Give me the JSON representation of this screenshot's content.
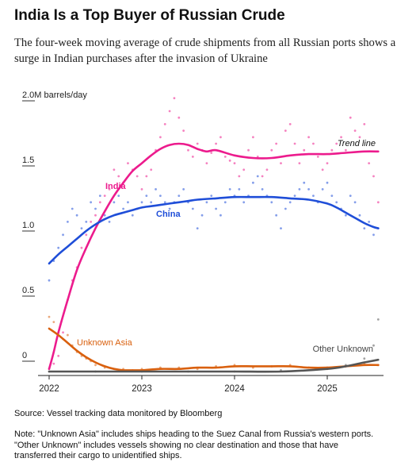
{
  "header": {
    "title": "India Is a Top Buyer of Russian Crude",
    "subtitle": "The four-week moving average of crude shipments from all Russian ports shows a surge in Indian purchases after the invasion of Ukraine"
  },
  "footer": {
    "source": "Source: Vessel tracking data monitored by Bloomberg",
    "note_lines": [
      "Note: \"Unknown Asia\" includes ships heading to the Suez Canal from Russia's western ports.",
      "\"Other Unknown\" includes vessels showing no clear destination and those that have",
      "transferred their cargo to unidentified ships."
    ]
  },
  "chart_data": {
    "type": "scatter",
    "title": "India Is a Top Buyer of Russian Crude",
    "unit": "barrels/day",
    "y_ticks": [
      {
        "value": 0,
        "label": "0"
      },
      {
        "value": 0.5,
        "label": "0.5"
      },
      {
        "value": 1.0,
        "label": "1.0"
      },
      {
        "value": 1.5,
        "label": "1.5"
      },
      {
        "value": 2.0,
        "label": "2.0M barrels/day"
      }
    ],
    "x_ticks": [
      {
        "value": 2022,
        "label": "2022"
      },
      {
        "value": 2023,
        "label": "2023"
      },
      {
        "value": 2024,
        "label": "2024"
      },
      {
        "value": 2025,
        "label": "2025"
      }
    ],
    "xlim": [
      2021.9,
      2025.6
    ],
    "ylim": [
      0,
      2.05
    ],
    "grid": false,
    "trend_line_label": "Trend line",
    "series": [
      {
        "name": "India",
        "color": "#ec1b8d",
        "label_x": 2021.2,
        "trend_x": [
          2022.0,
          2022.05,
          2022.1,
          2022.2,
          2022.3,
          2022.4,
          2022.5,
          2022.6,
          2022.7,
          2022.8,
          2022.9,
          2023.0,
          2023.1,
          2023.2,
          2023.3,
          2023.4,
          2023.5,
          2023.6,
          2023.7,
          2023.8,
          2024.0,
          2024.2,
          2024.4,
          2024.6,
          2024.8,
          2025.0,
          2025.2,
          2025.4,
          2025.55
        ],
        "trend_y": [
          0.02,
          0.15,
          0.3,
          0.55,
          0.78,
          0.95,
          1.1,
          1.23,
          1.35,
          1.45,
          1.54,
          1.6,
          1.66,
          1.71,
          1.74,
          1.75,
          1.74,
          1.71,
          1.69,
          1.7,
          1.66,
          1.64,
          1.64,
          1.66,
          1.67,
          1.67,
          1.68,
          1.69,
          1.69
        ],
        "points_x": [
          2022.0,
          2022.05,
          2022.1,
          2022.15,
          2022.2,
          2022.25,
          2022.3,
          2022.35,
          2022.4,
          2022.45,
          2022.5,
          2022.55,
          2022.6,
          2022.65,
          2022.7,
          2022.75,
          2022.8,
          2022.85,
          2022.9,
          2022.95,
          2023.0,
          2023.05,
          2023.1,
          2023.15,
          2023.2,
          2023.25,
          2023.3,
          2023.35,
          2023.4,
          2023.45,
          2023.5,
          2023.55,
          2023.6,
          2023.65,
          2023.7,
          2023.75,
          2023.8,
          2023.85,
          2023.9,
          2023.95,
          2024.0,
          2024.05,
          2024.1,
          2024.15,
          2024.2,
          2024.25,
          2024.3,
          2024.35,
          2024.4,
          2024.45,
          2024.5,
          2024.55,
          2024.6,
          2024.65,
          2024.7,
          2024.75,
          2024.8,
          2024.85,
          2024.9,
          2024.95,
          2025.0,
          2025.05,
          2025.1,
          2025.15,
          2025.2,
          2025.25,
          2025.3,
          2025.35,
          2025.4,
          2025.45,
          2025.5,
          2025.55
        ],
        "points_y": [
          0.02,
          0.06,
          0.12,
          0.3,
          0.55,
          0.7,
          0.8,
          0.95,
          1.05,
          1.15,
          1.2,
          1.3,
          1.35,
          1.4,
          1.55,
          1.5,
          1.45,
          1.6,
          1.55,
          1.5,
          1.4,
          1.5,
          1.55,
          1.7,
          1.8,
          1.9,
          2.0,
          2.1,
          1.95,
          1.85,
          1.7,
          1.65,
          1.75,
          1.7,
          1.6,
          1.68,
          1.75,
          1.8,
          1.65,
          1.62,
          1.6,
          1.5,
          1.55,
          1.7,
          1.8,
          1.65,
          1.5,
          1.55,
          1.7,
          1.75,
          1.6,
          1.85,
          1.9,
          1.75,
          1.6,
          1.7,
          1.8,
          1.75,
          1.65,
          1.55,
          1.6,
          1.7,
          1.75,
          1.8,
          1.7,
          1.95,
          1.85,
          1.8,
          1.9,
          1.6,
          1.5,
          1.3
        ]
      },
      {
        "name": "China",
        "color": "#1f4ed8",
        "label_x": 2023.2,
        "trend_x": [
          2022.0,
          2022.1,
          2022.2,
          2022.3,
          2022.4,
          2022.5,
          2022.6,
          2022.7,
          2022.8,
          2022.9,
          2023.0,
          2023.1,
          2023.2,
          2023.3,
          2023.4,
          2023.5,
          2023.6,
          2023.8,
          2024.0,
          2024.2,
          2024.4,
          2024.6,
          2024.8,
          2025.0,
          2025.1,
          2025.2,
          2025.3,
          2025.4,
          2025.5,
          2025.55
        ],
        "trend_y": [
          0.83,
          0.9,
          0.96,
          1.02,
          1.08,
          1.13,
          1.17,
          1.2,
          1.22,
          1.24,
          1.26,
          1.27,
          1.28,
          1.29,
          1.3,
          1.31,
          1.32,
          1.33,
          1.34,
          1.34,
          1.34,
          1.33,
          1.32,
          1.29,
          1.26,
          1.22,
          1.18,
          1.14,
          1.11,
          1.1
        ],
        "points_x": [
          2022.0,
          2022.05,
          2022.1,
          2022.15,
          2022.2,
          2022.25,
          2022.3,
          2022.35,
          2022.4,
          2022.45,
          2022.5,
          2022.55,
          2022.6,
          2022.65,
          2022.7,
          2022.75,
          2022.8,
          2022.85,
          2022.9,
          2022.95,
          2023.0,
          2023.05,
          2023.1,
          2023.15,
          2023.2,
          2023.25,
          2023.3,
          2023.35,
          2023.4,
          2023.45,
          2023.5,
          2023.55,
          2023.6,
          2023.65,
          2023.7,
          2023.75,
          2023.8,
          2023.85,
          2023.9,
          2023.95,
          2024.0,
          2024.05,
          2024.1,
          2024.15,
          2024.2,
          2024.25,
          2024.3,
          2024.35,
          2024.4,
          2024.45,
          2024.5,
          2024.55,
          2024.6,
          2024.65,
          2024.7,
          2024.75,
          2024.8,
          2024.85,
          2024.9,
          2024.95,
          2025.0,
          2025.05,
          2025.1,
          2025.15,
          2025.2,
          2025.25,
          2025.3,
          2025.35,
          2025.4,
          2025.45,
          2025.5,
          2025.55
        ],
        "points_y": [
          0.7,
          0.85,
          0.95,
          1.05,
          1.15,
          1.25,
          1.2,
          1.1,
          1.15,
          1.3,
          1.25,
          1.35,
          1.2,
          1.15,
          1.3,
          1.35,
          1.25,
          1.3,
          1.2,
          1.25,
          1.3,
          1.35,
          1.3,
          1.4,
          1.35,
          1.3,
          1.25,
          1.3,
          1.35,
          1.4,
          1.3,
          1.25,
          1.1,
          1.2,
          1.3,
          1.35,
          1.25,
          1.2,
          1.3,
          1.4,
          1.35,
          1.4,
          1.3,
          1.35,
          1.45,
          1.5,
          1.4,
          1.35,
          1.3,
          1.2,
          1.1,
          1.25,
          1.3,
          1.35,
          1.4,
          1.45,
          1.4,
          1.35,
          1.3,
          1.4,
          1.45,
          1.35,
          1.3,
          1.25,
          1.2,
          1.35,
          1.3,
          1.2,
          1.1,
          1.15,
          1.05,
          1.1
        ]
      },
      {
        "name": "Unknown Asia",
        "color": "#d9600e",
        "label_x": 2022.3,
        "trend_x": [
          2022.0,
          2022.1,
          2022.2,
          2022.3,
          2022.4,
          2022.5,
          2022.6,
          2022.7,
          2022.8,
          2022.9,
          2023.0,
          2023.2,
          2023.4,
          2023.6,
          2023.8,
          2024.0,
          2024.2,
          2024.4,
          2024.6,
          2024.8,
          2025.0,
          2025.2,
          2025.4,
          2025.55
        ],
        "trend_y": [
          0.33,
          0.28,
          0.22,
          0.16,
          0.11,
          0.07,
          0.04,
          0.02,
          0.01,
          0.01,
          0.01,
          0.02,
          0.02,
          0.03,
          0.03,
          0.04,
          0.04,
          0.04,
          0.04,
          0.03,
          0.03,
          0.04,
          0.05,
          0.05
        ],
        "points_x": [
          2022.0,
          2022.05,
          2022.1,
          2022.15,
          2022.2,
          2022.25,
          2022.3,
          2022.35,
          2022.4,
          2022.45,
          2022.5,
          2022.6,
          2022.7,
          2022.8,
          2022.9,
          2023.0,
          2023.2,
          2023.4,
          2023.6,
          2023.8,
          2024.0,
          2024.2,
          2024.4,
          2024.6,
          2024.8,
          2025.0,
          2025.2,
          2025.4,
          2025.55
        ],
        "points_y": [
          0.42,
          0.38,
          0.3,
          0.25,
          0.28,
          0.2,
          0.15,
          0.12,
          0.1,
          0.08,
          0.05,
          0.03,
          0.02,
          0.02,
          0.01,
          0.02,
          0.03,
          0.03,
          0.02,
          0.04,
          0.05,
          0.03,
          0.04,
          0.05,
          0.03,
          0.02,
          0.04,
          0.06,
          0.05
        ]
      },
      {
        "name": "Other Unknown",
        "color": "#555555",
        "label_x": 2025.0,
        "trend_x": [
          2022.0,
          2022.5,
          2023.0,
          2023.5,
          2024.0,
          2024.5,
          2025.0,
          2025.2,
          2025.4,
          2025.55
        ],
        "trend_y": [
          0.0,
          0.0,
          0.0,
          0.0,
          0.0,
          0.0,
          0.02,
          0.04,
          0.07,
          0.09
        ],
        "points_x": [
          2022.0,
          2022.5,
          2023.0,
          2023.5,
          2024.0,
          2024.5,
          2025.0,
          2025.2,
          2025.4,
          2025.5,
          2025.55
        ],
        "points_y": [
          0.0,
          0.0,
          0.0,
          0.0,
          0.0,
          0.01,
          0.03,
          0.05,
          0.1,
          0.2,
          0.4
        ]
      }
    ]
  }
}
